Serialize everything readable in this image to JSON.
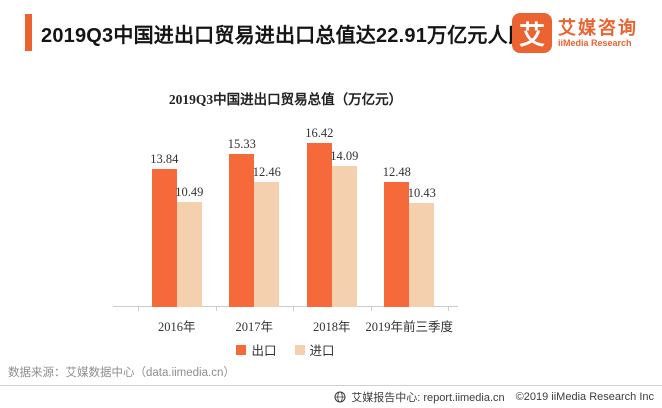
{
  "header": {
    "title": "2019Q3中国进出口贸易进出口总值达22.91万亿元人民币",
    "logo_glyph": "艾",
    "brand_cn": "艾媒咨询",
    "brand_en": "iiMedia Research"
  },
  "colors": {
    "accent": "#EA6330",
    "bar_export": "#F5693B",
    "bar_import": "#F5D0AE",
    "axis": "#cccccc"
  },
  "chart_data": {
    "type": "bar",
    "title": "2019Q3中国进出口贸易总值（万亿元）",
    "categories": [
      "2016年",
      "2017年",
      "2018年",
      "2019年前三季度"
    ],
    "series": [
      {
        "name": "出口",
        "key": "export",
        "color": "#F5693B",
        "values": [
          13.84,
          15.33,
          16.42,
          12.48
        ]
      },
      {
        "name": "进口",
        "key": "import",
        "color": "#F5D0AE",
        "values": [
          10.49,
          12.46,
          14.09,
          10.43
        ]
      }
    ],
    "ylim": [
      0,
      17
    ],
    "grid": false,
    "value_labels": true,
    "legend_position": "bottom"
  },
  "source_note": "数据来源：艾媒数据中心（data.iimedia.cn）",
  "footer": {
    "site_label": "艾媒报告中心: report.iimedia.cn",
    "copyright": "©2019  iiMedia Research Inc"
  }
}
